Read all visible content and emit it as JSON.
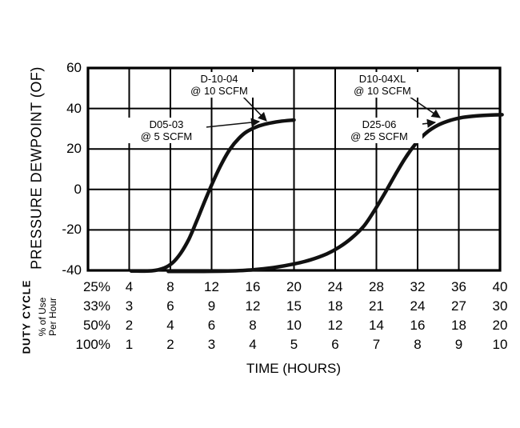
{
  "chart_data": {
    "type": "line",
    "title": "",
    "ylabel": "PRESSURE DEWPOINT (OF)",
    "xlabel": "TIME (HOURS)",
    "ylim": [
      -40,
      60
    ],
    "xlim": [
      0,
      10
    ],
    "grid": true,
    "line_color": "#111111",
    "y_ticks": [
      60,
      40,
      20,
      0,
      -20,
      -40
    ],
    "y_gridlines": [
      40,
      20,
      0,
      -20
    ],
    "x_gridlines": [
      1,
      2,
      3,
      4,
      5,
      6,
      7,
      8,
      9,
      10
    ],
    "duty_cycle_label": "DUTY CYCLE",
    "per_hour_label_line1": "% of Use",
    "per_hour_label_line2": "Per Hour",
    "x_rows": [
      {
        "label": "25%",
        "values": [
          4,
          8,
          12,
          16,
          20,
          24,
          28,
          32,
          36,
          40
        ]
      },
      {
        "label": "33%",
        "values": [
          3,
          6,
          9,
          12,
          15,
          18,
          21,
          24,
          27,
          30
        ]
      },
      {
        "label": "50%",
        "values": [
          2,
          4,
          6,
          8,
          10,
          12,
          14,
          16,
          18,
          20
        ]
      },
      {
        "label": "100%",
        "values": [
          1,
          2,
          3,
          4,
          5,
          6,
          7,
          8,
          9,
          10
        ]
      }
    ],
    "series": [
      {
        "name": "D05-03 @ 5 SCFM / D-10-04 @ 10 SCFM",
        "points": [
          [
            1.05,
            -40.3
          ],
          [
            1.55,
            -40.2
          ],
          [
            1.85,
            -38.8
          ],
          [
            2.05,
            -36.3
          ],
          [
            2.25,
            -31.5
          ],
          [
            2.45,
            -24.5
          ],
          [
            2.65,
            -15
          ],
          [
            2.85,
            -5
          ],
          [
            3.05,
            4.5
          ],
          [
            3.25,
            13
          ],
          [
            3.45,
            20
          ],
          [
            3.65,
            25
          ],
          [
            3.85,
            28.5
          ],
          [
            4.1,
            31
          ],
          [
            4.35,
            32.5
          ],
          [
            4.65,
            33.6
          ],
          [
            5.0,
            34.3
          ]
        ]
      },
      {
        "name": "D25-06 @ 25 SCFM / D10-04XL @ 10 SCFM",
        "points": [
          [
            1.95,
            -40.5
          ],
          [
            2.7,
            -40.5
          ],
          [
            3.4,
            -40.3
          ],
          [
            4.0,
            -39.7
          ],
          [
            4.5,
            -38.6
          ],
          [
            5.0,
            -36.8
          ],
          [
            5.4,
            -34.8
          ],
          [
            5.8,
            -31.8
          ],
          [
            6.1,
            -28.5
          ],
          [
            6.4,
            -24
          ],
          [
            6.7,
            -18
          ],
          [
            6.95,
            -10.5
          ],
          [
            7.2,
            -2
          ],
          [
            7.45,
            7
          ],
          [
            7.7,
            15.5
          ],
          [
            7.95,
            22.5
          ],
          [
            8.2,
            27.8
          ],
          [
            8.5,
            31.8
          ],
          [
            8.8,
            34.2
          ],
          [
            9.1,
            35.6
          ],
          [
            9.45,
            36.4
          ],
          [
            9.8,
            36.8
          ],
          [
            10.05,
            36.9
          ]
        ]
      }
    ],
    "annotations": [
      {
        "line1": "D-10-04",
        "line2": "@ 10 SCFM",
        "leader": [
          303,
          120,
          333,
          151
        ]
      },
      {
        "line1": "D05-03",
        "line2": "@ 5 SCFM",
        "leader": [
          257,
          159,
          324,
          152
        ]
      },
      {
        "line1": "D10-04XL",
        "line2": "@ 10 SCFM",
        "leader": [
          512,
          121,
          550,
          147
        ]
      },
      {
        "line1": "D25-06",
        "line2": "@ 25 SCFM",
        "leader": [
          503,
          158,
          544,
          153
        ]
      }
    ]
  }
}
